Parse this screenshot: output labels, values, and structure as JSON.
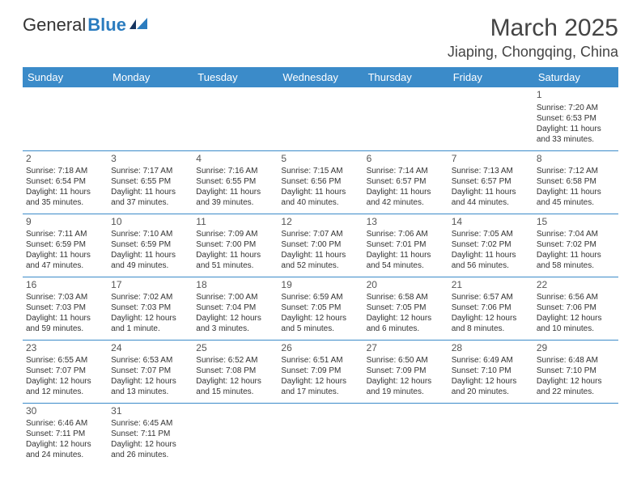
{
  "logo": {
    "text_a": "General",
    "text_b": "Blue"
  },
  "title": "March 2025",
  "location": "Jiaping, Chongqing, China",
  "colors": {
    "header_bg": "#3b8bc9",
    "border": "#3b8bc9",
    "text": "#333333",
    "logo_blue": "#2b7cbf"
  },
  "days_of_week": [
    "Sunday",
    "Monday",
    "Tuesday",
    "Wednesday",
    "Thursday",
    "Friday",
    "Saturday"
  ],
  "weeks": [
    [
      null,
      null,
      null,
      null,
      null,
      null,
      {
        "n": "1",
        "sr": "Sunrise: 7:20 AM",
        "ss": "Sunset: 6:53 PM",
        "dl": "Daylight: 11 hours and 33 minutes."
      }
    ],
    [
      {
        "n": "2",
        "sr": "Sunrise: 7:18 AM",
        "ss": "Sunset: 6:54 PM",
        "dl": "Daylight: 11 hours and 35 minutes."
      },
      {
        "n": "3",
        "sr": "Sunrise: 7:17 AM",
        "ss": "Sunset: 6:55 PM",
        "dl": "Daylight: 11 hours and 37 minutes."
      },
      {
        "n": "4",
        "sr": "Sunrise: 7:16 AM",
        "ss": "Sunset: 6:55 PM",
        "dl": "Daylight: 11 hours and 39 minutes."
      },
      {
        "n": "5",
        "sr": "Sunrise: 7:15 AM",
        "ss": "Sunset: 6:56 PM",
        "dl": "Daylight: 11 hours and 40 minutes."
      },
      {
        "n": "6",
        "sr": "Sunrise: 7:14 AM",
        "ss": "Sunset: 6:57 PM",
        "dl": "Daylight: 11 hours and 42 minutes."
      },
      {
        "n": "7",
        "sr": "Sunrise: 7:13 AM",
        "ss": "Sunset: 6:57 PM",
        "dl": "Daylight: 11 hours and 44 minutes."
      },
      {
        "n": "8",
        "sr": "Sunrise: 7:12 AM",
        "ss": "Sunset: 6:58 PM",
        "dl": "Daylight: 11 hours and 45 minutes."
      }
    ],
    [
      {
        "n": "9",
        "sr": "Sunrise: 7:11 AM",
        "ss": "Sunset: 6:59 PM",
        "dl": "Daylight: 11 hours and 47 minutes."
      },
      {
        "n": "10",
        "sr": "Sunrise: 7:10 AM",
        "ss": "Sunset: 6:59 PM",
        "dl": "Daylight: 11 hours and 49 minutes."
      },
      {
        "n": "11",
        "sr": "Sunrise: 7:09 AM",
        "ss": "Sunset: 7:00 PM",
        "dl": "Daylight: 11 hours and 51 minutes."
      },
      {
        "n": "12",
        "sr": "Sunrise: 7:07 AM",
        "ss": "Sunset: 7:00 PM",
        "dl": "Daylight: 11 hours and 52 minutes."
      },
      {
        "n": "13",
        "sr": "Sunrise: 7:06 AM",
        "ss": "Sunset: 7:01 PM",
        "dl": "Daylight: 11 hours and 54 minutes."
      },
      {
        "n": "14",
        "sr": "Sunrise: 7:05 AM",
        "ss": "Sunset: 7:02 PM",
        "dl": "Daylight: 11 hours and 56 minutes."
      },
      {
        "n": "15",
        "sr": "Sunrise: 7:04 AM",
        "ss": "Sunset: 7:02 PM",
        "dl": "Daylight: 11 hours and 58 minutes."
      }
    ],
    [
      {
        "n": "16",
        "sr": "Sunrise: 7:03 AM",
        "ss": "Sunset: 7:03 PM",
        "dl": "Daylight: 11 hours and 59 minutes."
      },
      {
        "n": "17",
        "sr": "Sunrise: 7:02 AM",
        "ss": "Sunset: 7:03 PM",
        "dl": "Daylight: 12 hours and 1 minute."
      },
      {
        "n": "18",
        "sr": "Sunrise: 7:00 AM",
        "ss": "Sunset: 7:04 PM",
        "dl": "Daylight: 12 hours and 3 minutes."
      },
      {
        "n": "19",
        "sr": "Sunrise: 6:59 AM",
        "ss": "Sunset: 7:05 PM",
        "dl": "Daylight: 12 hours and 5 minutes."
      },
      {
        "n": "20",
        "sr": "Sunrise: 6:58 AM",
        "ss": "Sunset: 7:05 PM",
        "dl": "Daylight: 12 hours and 6 minutes."
      },
      {
        "n": "21",
        "sr": "Sunrise: 6:57 AM",
        "ss": "Sunset: 7:06 PM",
        "dl": "Daylight: 12 hours and 8 minutes."
      },
      {
        "n": "22",
        "sr": "Sunrise: 6:56 AM",
        "ss": "Sunset: 7:06 PM",
        "dl": "Daylight: 12 hours and 10 minutes."
      }
    ],
    [
      {
        "n": "23",
        "sr": "Sunrise: 6:55 AM",
        "ss": "Sunset: 7:07 PM",
        "dl": "Daylight: 12 hours and 12 minutes."
      },
      {
        "n": "24",
        "sr": "Sunrise: 6:53 AM",
        "ss": "Sunset: 7:07 PM",
        "dl": "Daylight: 12 hours and 13 minutes."
      },
      {
        "n": "25",
        "sr": "Sunrise: 6:52 AM",
        "ss": "Sunset: 7:08 PM",
        "dl": "Daylight: 12 hours and 15 minutes."
      },
      {
        "n": "26",
        "sr": "Sunrise: 6:51 AM",
        "ss": "Sunset: 7:09 PM",
        "dl": "Daylight: 12 hours and 17 minutes."
      },
      {
        "n": "27",
        "sr": "Sunrise: 6:50 AM",
        "ss": "Sunset: 7:09 PM",
        "dl": "Daylight: 12 hours and 19 minutes."
      },
      {
        "n": "28",
        "sr": "Sunrise: 6:49 AM",
        "ss": "Sunset: 7:10 PM",
        "dl": "Daylight: 12 hours and 20 minutes."
      },
      {
        "n": "29",
        "sr": "Sunrise: 6:48 AM",
        "ss": "Sunset: 7:10 PM",
        "dl": "Daylight: 12 hours and 22 minutes."
      }
    ],
    [
      {
        "n": "30",
        "sr": "Sunrise: 6:46 AM",
        "ss": "Sunset: 7:11 PM",
        "dl": "Daylight: 12 hours and 24 minutes."
      },
      {
        "n": "31",
        "sr": "Sunrise: 6:45 AM",
        "ss": "Sunset: 7:11 PM",
        "dl": "Daylight: 12 hours and 26 minutes."
      },
      null,
      null,
      null,
      null,
      null
    ]
  ]
}
